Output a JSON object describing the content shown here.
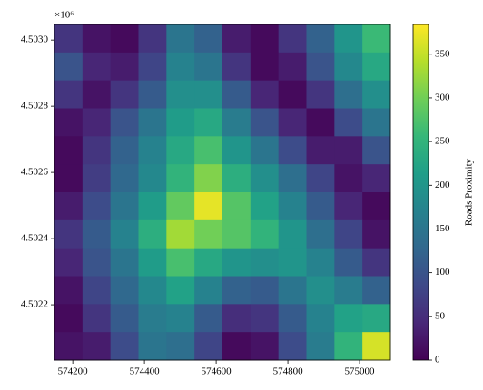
{
  "chart_data": {
    "type": "heatmap",
    "xlim": [
      574149,
      575086
    ],
    "ylim": [
      4502033,
      4503047
    ],
    "xticks": [
      574200,
      574400,
      574600,
      574800,
      575000
    ],
    "yticks": [
      {
        "value": 4502200,
        "label": "4.5022"
      },
      {
        "value": 4502400,
        "label": "4.5024"
      },
      {
        "value": 4502600,
        "label": "4.5026"
      },
      {
        "value": 4502800,
        "label": "4.5028"
      },
      {
        "value": 4503000,
        "label": "4.5030"
      }
    ],
    "y_offset_label": "×10⁶",
    "z": [
      [
        60,
        20,
        10,
        60,
        150,
        120,
        30,
        10,
        60,
        120,
        200,
        260
      ],
      [
        100,
        40,
        30,
        80,
        170,
        150,
        60,
        10,
        30,
        100,
        180,
        230
      ],
      [
        60,
        20,
        60,
        110,
        190,
        190,
        110,
        40,
        10,
        60,
        140,
        190
      ],
      [
        20,
        40,
        100,
        150,
        210,
        230,
        160,
        100,
        40,
        10,
        90,
        150
      ],
      [
        10,
        60,
        120,
        170,
        230,
        270,
        200,
        150,
        90,
        30,
        30,
        100
      ],
      [
        10,
        70,
        130,
        180,
        250,
        310,
        240,
        190,
        140,
        80,
        20,
        40
      ],
      [
        30,
        90,
        150,
        210,
        290,
        370,
        280,
        220,
        170,
        110,
        40,
        10
      ],
      [
        60,
        110,
        170,
        240,
        330,
        300,
        280,
        250,
        200,
        140,
        80,
        20
      ],
      [
        40,
        100,
        150,
        210,
        270,
        230,
        200,
        190,
        200,
        170,
        110,
        60
      ],
      [
        20,
        80,
        130,
        180,
        220,
        170,
        120,
        110,
        150,
        190,
        160,
        120
      ],
      [
        10,
        60,
        110,
        160,
        170,
        110,
        50,
        60,
        110,
        170,
        220,
        230
      ],
      [
        20,
        30,
        90,
        150,
        140,
        80,
        10,
        20,
        90,
        160,
        250,
        360
      ]
    ],
    "clim": [
      0,
      384
    ],
    "cticks": [
      0,
      50,
      100,
      150,
      200,
      250,
      300,
      350
    ],
    "colorbar_label": "Roads Proximity",
    "colormap": [
      "#440154",
      "#482878",
      "#3e4989",
      "#31688e",
      "#26828e",
      "#1f9e89",
      "#35b779",
      "#6ece58",
      "#b5de2b",
      "#fde725"
    ]
  }
}
